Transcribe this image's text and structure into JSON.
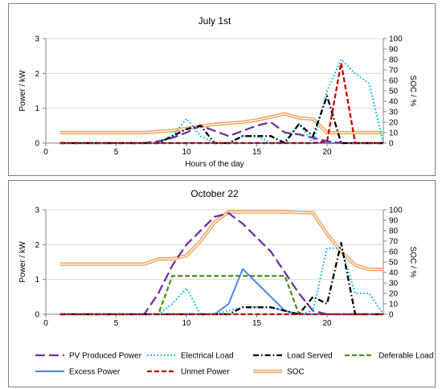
{
  "charts": [
    {
      "chart_data": {
        "type": "line",
        "title": "July 1st",
        "xlabel": "Hours of the day",
        "ylabel": "Power / kW",
        "y2label": "SOC / %",
        "xlim": [
          0,
          24
        ],
        "xticks": [
          0,
          5,
          10,
          15,
          20
        ],
        "ylim": [
          0,
          3
        ],
        "yticks": [
          0,
          1,
          2,
          3
        ],
        "y2lim": [
          0,
          100
        ],
        "y2ticks": [
          0,
          10,
          20,
          30,
          40,
          50,
          60,
          70,
          80,
          90,
          100
        ],
        "grid": "horizontal",
        "series": [
          {
            "name": "PV Produced Power",
            "axis": "left",
            "x": [
              1,
              2,
              3,
              4,
              5,
              6,
              7,
              8,
              9,
              10,
              11,
              12,
              13,
              14,
              15,
              16,
              17,
              18,
              19,
              20,
              21,
              22,
              23,
              24
            ],
            "y": [
              0,
              0,
              0,
              0,
              0,
              0,
              0,
              0.05,
              0.15,
              0.3,
              0.5,
              0.35,
              0.2,
              0.35,
              0.5,
              0.6,
              0.3,
              0.25,
              0.15,
              0.05,
              0,
              0,
              0,
              0
            ]
          },
          {
            "name": "Electrical Load",
            "axis": "left",
            "x": [
              1,
              2,
              3,
              4,
              5,
              6,
              7,
              8,
              9,
              10,
              11,
              12,
              13,
              14,
              15,
              16,
              17,
              18,
              19,
              20,
              21,
              22,
              23,
              24
            ],
            "y": [
              0,
              0,
              0,
              0,
              0,
              0,
              0,
              0,
              0.2,
              0.7,
              0.2,
              0,
              0,
              0.2,
              0.2,
              0,
              0.05,
              0.55,
              0,
              1.5,
              2.4,
              2.0,
              1.7,
              0
            ]
          },
          {
            "name": "Load Served",
            "axis": "left",
            "x": [
              1,
              2,
              3,
              4,
              5,
              6,
              7,
              8,
              9,
              10,
              11,
              12,
              13,
              14,
              15,
              16,
              17,
              18,
              19,
              20,
              21,
              22,
              23,
              24
            ],
            "y": [
              0,
              0,
              0,
              0,
              0,
              0,
              0,
              0,
              0.2,
              0.4,
              0.5,
              0,
              0,
              0.2,
              0.2,
              0.2,
              0,
              0.55,
              0.2,
              1.35,
              0,
              0,
              0,
              0
            ]
          },
          {
            "name": "Deferable Load",
            "axis": "left",
            "x": [
              1,
              2,
              3,
              4,
              5,
              6,
              7,
              8,
              9,
              10,
              11,
              12,
              13,
              14,
              15,
              16,
              17,
              18,
              19,
              20,
              21,
              22,
              23,
              24
            ],
            "y": [
              0,
              0,
              0,
              0,
              0,
              0,
              0,
              0,
              0,
              0,
              0,
              0,
              0,
              0,
              0,
              0,
              0,
              0,
              0,
              0,
              0,
              0,
              0,
              0
            ]
          },
          {
            "name": "Excess Power",
            "axis": "left",
            "x": [
              1,
              2,
              3,
              4,
              5,
              6,
              7,
              8,
              9,
              10,
              11,
              12,
              13,
              14,
              15,
              16,
              17,
              18,
              19,
              20,
              21,
              22,
              23,
              24
            ],
            "y": [
              0,
              0,
              0,
              0,
              0,
              0,
              0,
              0,
              0,
              0,
              0,
              0,
              0,
              0,
              0,
              0,
              0,
              0,
              0,
              0,
              0,
              0,
              0,
              0
            ]
          },
          {
            "name": "Unmet Power",
            "axis": "left",
            "x": [
              1,
              2,
              3,
              4,
              5,
              6,
              7,
              8,
              9,
              10,
              11,
              12,
              13,
              14,
              15,
              16,
              17,
              18,
              19,
              20,
              21,
              22,
              23,
              24
            ],
            "y": [
              0,
              0,
              0,
              0,
              0,
              0,
              0,
              0,
              0,
              0,
              0,
              0,
              0,
              0,
              0,
              0,
              0,
              0,
              0,
              0.05,
              2.3,
              0,
              0,
              0
            ]
          },
          {
            "name": "SOC",
            "axis": "right",
            "x": [
              1,
              2,
              3,
              4,
              5,
              6,
              7,
              8,
              9,
              10,
              11,
              12,
              13,
              14,
              15,
              16,
              17,
              18,
              19,
              20,
              21,
              22,
              23,
              24
            ],
            "y": [
              10,
              10,
              10,
              10,
              10,
              10,
              10,
              11,
              12,
              14,
              16,
              18,
              19,
              20,
              22,
              25,
              28,
              24,
              23,
              10,
              10,
              10,
              10,
              10
            ]
          }
        ]
      }
    },
    {
      "chart_data": {
        "type": "line",
        "title": "October 22",
        "xlabel": "",
        "ylabel": "Power / kW",
        "y2label": "SOC / %",
        "xlim": [
          0,
          24
        ],
        "xticks": [
          0,
          5,
          10,
          15,
          20
        ],
        "ylim": [
          0,
          3
        ],
        "yticks": [
          0,
          1,
          2,
          3
        ],
        "y2lim": [
          0,
          100
        ],
        "y2ticks": [
          0,
          10,
          20,
          30,
          40,
          50,
          60,
          70,
          80,
          90,
          100
        ],
        "grid": "horizontal",
        "series": [
          {
            "name": "PV Produced Power",
            "axis": "left",
            "x": [
              1,
              2,
              3,
              4,
              5,
              6,
              7,
              8,
              9,
              10,
              11,
              12,
              13,
              14,
              15,
              16,
              17,
              18,
              19,
              20,
              21,
              22,
              23,
              24
            ],
            "y": [
              0,
              0,
              0,
              0,
              0,
              0,
              0,
              0.6,
              1.4,
              2.0,
              2.4,
              2.8,
              2.9,
              2.6,
              2.2,
              1.8,
              1.2,
              0.6,
              0.1,
              0,
              0,
              0,
              0,
              0
            ]
          },
          {
            "name": "Electrical Load",
            "axis": "left",
            "x": [
              1,
              2,
              3,
              4,
              5,
              6,
              7,
              8,
              9,
              10,
              11,
              12,
              13,
              14,
              15,
              16,
              17,
              18,
              19,
              20,
              21,
              22,
              23,
              24
            ],
            "y": [
              0,
              0,
              0,
              0,
              0,
              0,
              0,
              0,
              0.3,
              0.75,
              0,
              0,
              0.1,
              0.2,
              0.2,
              0.2,
              0.1,
              0,
              0.1,
              1.9,
              1.9,
              0.6,
              0.6,
              0
            ]
          },
          {
            "name": "Load Served",
            "axis": "left",
            "x": [
              1,
              2,
              3,
              4,
              5,
              6,
              7,
              8,
              9,
              10,
              11,
              12,
              13,
              14,
              15,
              16,
              17,
              18,
              19,
              20,
              21,
              22,
              23,
              24
            ],
            "y": [
              0,
              0,
              0,
              0,
              0,
              0,
              0,
              0,
              0,
              0,
              0,
              0,
              0,
              0.2,
              0.2,
              0.2,
              0.1,
              0,
              0.5,
              0.3,
              2.05,
              0,
              0,
              0
            ]
          },
          {
            "name": "Deferable Load",
            "axis": "left",
            "x": [
              1,
              2,
              3,
              4,
              5,
              6,
              7,
              8,
              9,
              10,
              11,
              12,
              13,
              14,
              15,
              16,
              17,
              18,
              19,
              20,
              21,
              22,
              23,
              24
            ],
            "y": [
              0,
              0,
              0,
              0,
              0,
              0,
              0,
              0,
              1.1,
              1.1,
              1.1,
              1.1,
              1.1,
              1.1,
              1.1,
              1.1,
              1.1,
              0,
              0,
              0,
              0,
              0,
              0,
              0
            ]
          },
          {
            "name": "Excess Power",
            "axis": "left",
            "x": [
              1,
              2,
              3,
              4,
              5,
              6,
              7,
              8,
              9,
              10,
              11,
              12,
              13,
              14,
              15,
              16,
              17,
              18,
              19,
              20,
              21,
              22,
              23,
              24
            ],
            "y": [
              0,
              0,
              0,
              0,
              0,
              0,
              0,
              0,
              0,
              0,
              0,
              0,
              0.3,
              1.3,
              0.9,
              0.5,
              0.1,
              0,
              0,
              0,
              0,
              0,
              0,
              0
            ]
          },
          {
            "name": "Unmet Power",
            "axis": "left",
            "x": [
              1,
              2,
              3,
              4,
              5,
              6,
              7,
              8,
              9,
              10,
              11,
              12,
              13,
              14,
              15,
              16,
              17,
              18,
              19,
              20,
              21,
              22,
              23,
              24
            ],
            "y": [
              0,
              0,
              0,
              0,
              0,
              0,
              0,
              0,
              0,
              0,
              0,
              0,
              0,
              0,
              0,
              0,
              0,
              0,
              0,
              0,
              0,
              0,
              0,
              0
            ]
          },
          {
            "name": "SOC",
            "axis": "right",
            "x": [
              1,
              2,
              3,
              4,
              5,
              6,
              7,
              8,
              9,
              10,
              11,
              12,
              13,
              14,
              15,
              16,
              17,
              18,
              19,
              20,
              21,
              22,
              23,
              24
            ],
            "y": [
              48,
              48,
              48,
              48,
              48,
              48,
              48,
              53,
              53,
              56,
              70,
              88,
              98,
              98,
              98,
              98,
              98,
              97.5,
              97,
              77,
              60,
              47,
              43,
              43
            ]
          }
        ]
      }
    }
  ],
  "legend": [
    {
      "name": "PV Produced Power",
      "color": "#7030a0",
      "style": "longdash"
    },
    {
      "name": "Electrical Load",
      "color": "#00b0f0",
      "style": "dot"
    },
    {
      "name": "Load Served",
      "color": "#000000",
      "style": "dashdot"
    },
    {
      "name": "Deferable Load",
      "color": "#4f8f1f",
      "style": "dash"
    },
    {
      "name": "Excess Power",
      "color": "#4a86e8",
      "style": "solid"
    },
    {
      "name": "Unmet Power",
      "color": "#c00000",
      "style": "dash"
    },
    {
      "name": "SOC",
      "color": "#f5a05a",
      "style": "double"
    }
  ],
  "colors": {
    "PV Produced Power": "#7030a0",
    "Electrical Load": "#00b0f0",
    "Load Served": "#000000",
    "Deferable Load": "#4f8f1f",
    "Excess Power": "#4a86e8",
    "Unmet Power": "#c00000",
    "SOC": "#f5a05a"
  }
}
